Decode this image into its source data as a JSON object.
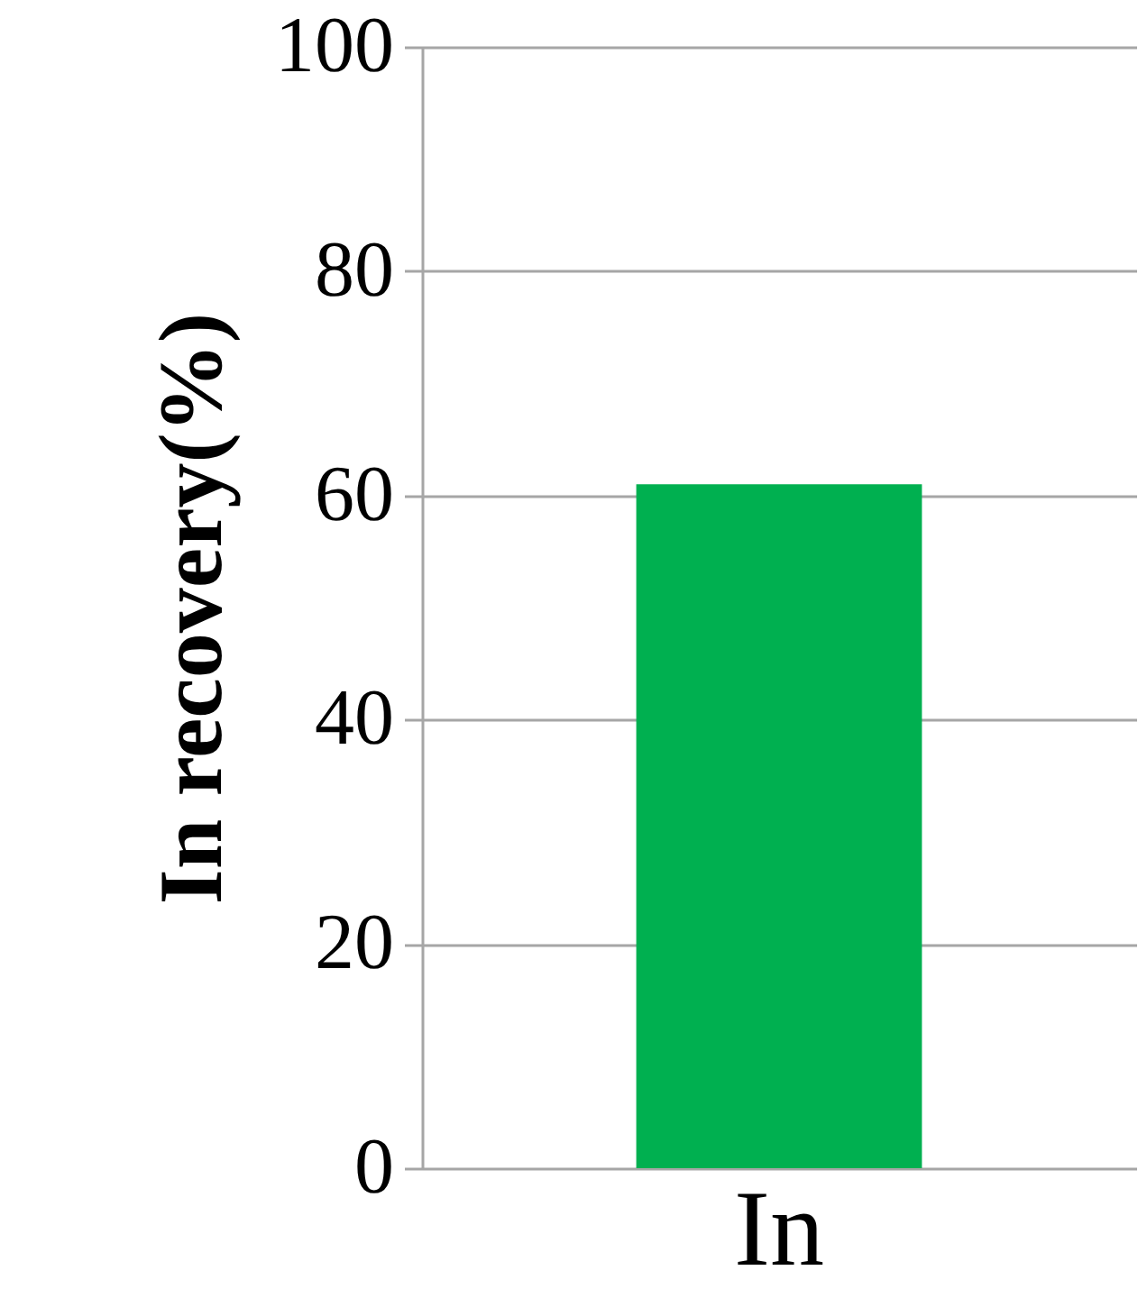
{
  "chart_data": {
    "type": "bar",
    "ylabel": "In recovery(%)",
    "categories": [
      "In"
    ],
    "values": [
      61
    ],
    "color": "#00b050",
    "ylim": [
      0,
      100
    ],
    "yticks": [
      0,
      20,
      40,
      60,
      80,
      100
    ],
    "grid": "y"
  }
}
